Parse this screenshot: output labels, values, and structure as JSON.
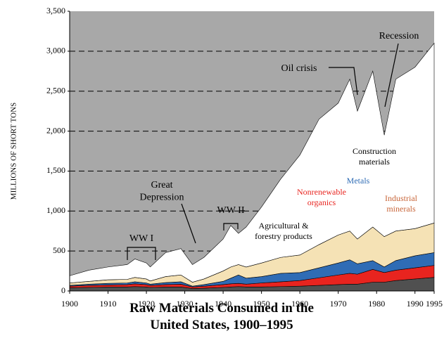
{
  "chart_data": {
    "type": "stacked_area",
    "title": "Raw Materials Consumed in the United States, 1900–1995",
    "y_label": "MILLIONS OF SHORT TONS",
    "x": [
      1900,
      1905,
      1910,
      1915,
      1917,
      1920,
      1921,
      1925,
      1929,
      1932,
      1935,
      1940,
      1942,
      1944,
      1946,
      1950,
      1955,
      1960,
      1965,
      1970,
      1973,
      1975,
      1979,
      1982,
      1985,
      1990,
      1995
    ],
    "series": [
      {
        "name": "Agricultural & forestry products",
        "color": "#505050",
        "values": [
          40,
          45,
          50,
          50,
          55,
          50,
          45,
          50,
          50,
          30,
          35,
          45,
          50,
          55,
          50,
          50,
          55,
          60,
          70,
          80,
          85,
          85,
          110,
          110,
          130,
          150,
          170
        ]
      },
      {
        "name": "Nonrenewable organics",
        "color": "#e8241f",
        "values": [
          20,
          25,
          25,
          30,
          35,
          30,
          25,
          30,
          35,
          20,
          25,
          35,
          40,
          40,
          35,
          50,
          60,
          70,
          95,
          120,
          135,
          125,
          160,
          120,
          130,
          140,
          150
        ]
      },
      {
        "name": "Metals",
        "color": "#2f6cb5",
        "values": [
          10,
          15,
          20,
          20,
          25,
          20,
          15,
          25,
          30,
          10,
          20,
          40,
          70,
          105,
          75,
          80,
          105,
          100,
          125,
          150,
          170,
          130,
          110,
          70,
          120,
          150,
          160
        ]
      },
      {
        "name": "Industrial minerals",
        "color": "#f5e2b5",
        "values": [
          30,
          35,
          45,
          45,
          55,
          50,
          40,
          75,
          85,
          50,
          70,
          130,
          140,
          130,
          140,
          170,
          200,
          220,
          290,
          350,
          360,
          310,
          420,
          380,
          370,
          340,
          370
        ]
      },
      {
        "name": "Construction materials",
        "color": "#ffffff",
        "values": [
          90,
          140,
          160,
          185,
          230,
          200,
          175,
          300,
          330,
          220,
          270,
          400,
          520,
          390,
          500,
          700,
          980,
          1250,
          1570,
          1650,
          1900,
          1600,
          1950,
          1270,
          1900,
          2020,
          2250
        ]
      }
    ],
    "annotations": [
      "WW I",
      "Great Depression",
      "WW II",
      "Oil crisis",
      "Recession"
    ],
    "background_color": "#a8a8a8",
    "xlim": [
      1900,
      1995
    ],
    "xticks": [
      1900,
      1910,
      1920,
      1930,
      1940,
      1950,
      1960,
      1970,
      1980,
      1990,
      1995
    ],
    "ylim": [
      0,
      3500
    ],
    "yticks": [
      0,
      500,
      {
        "value": 1000,
        "label": "1,000"
      },
      {
        "value": 1500,
        "label": "1,500"
      },
      {
        "value": 2000,
        "label": "2,000"
      },
      {
        "value": 2500,
        "label": "2,500"
      },
      {
        "value": 3000,
        "label": "3,000"
      },
      {
        "value": 3500,
        "label": "3,500"
      }
    ],
    "grid": true
  }
}
